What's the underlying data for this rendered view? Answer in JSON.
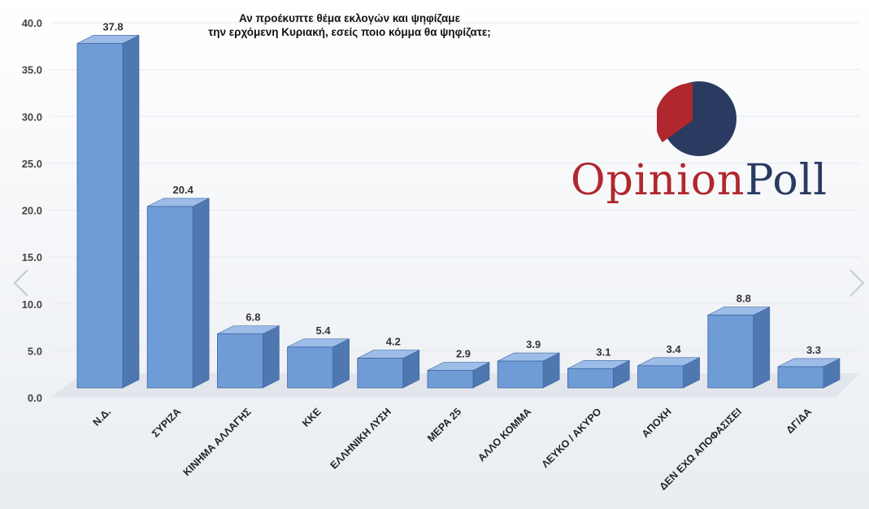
{
  "chart_data": {
    "type": "bar",
    "title_lines": [
      "Αν προέκυπτε θέμα εκλογών και ψηφίζαμε",
      "την ερχόμενη Κυριακή, εσείς ποιο κόμμα θα ψηφίζατε;"
    ],
    "categories": [
      "Ν.Δ.",
      "ΣΥΡΙΖΑ",
      "ΚΙΝΗΜΑ ΑΛΛΑΓΗΣ",
      "ΚΚΕ",
      "ΕΛΛΗΝΙΚΗ ΛΥΣΗ",
      "ΜΕΡΑ 25",
      "ΑΛΛΟ ΚΟΜΜΑ",
      "ΛΕΥΚΟ / ΑΚΥΡΟ",
      "ΑΠΟΧΗ",
      "ΔΕΝ ΕΧΩ ΑΠΟΦΑΣΙΣΕΙ",
      "ΔΓ/ΔΑ"
    ],
    "values": [
      37.8,
      20.4,
      6.8,
      5.4,
      4.2,
      2.9,
      3.9,
      3.1,
      3.4,
      8.8,
      3.3
    ],
    "value_labels": [
      "37.8",
      "20.4",
      "6.8",
      "5.4",
      "4.2",
      "2.9",
      "3.9",
      "3.1",
      "3.4",
      "8.8",
      "3.3"
    ],
    "yticks": [
      "0.0",
      "5.0",
      "10.0",
      "15.0",
      "20.0",
      "25.0",
      "30.0",
      "35.0",
      "40.0"
    ],
    "ylim": [
      0,
      40
    ],
    "grid": true,
    "bar_color": "#6f9bd6"
  },
  "logo": {
    "text_part1": "Opinion",
    "text_part2": "Poll",
    "pie_share": 0.35,
    "red": "#b0282e",
    "navy": "#2a3a60"
  },
  "nav": {
    "prev_icon": "chevron-left-icon",
    "next_icon": "chevron-right-icon"
  }
}
